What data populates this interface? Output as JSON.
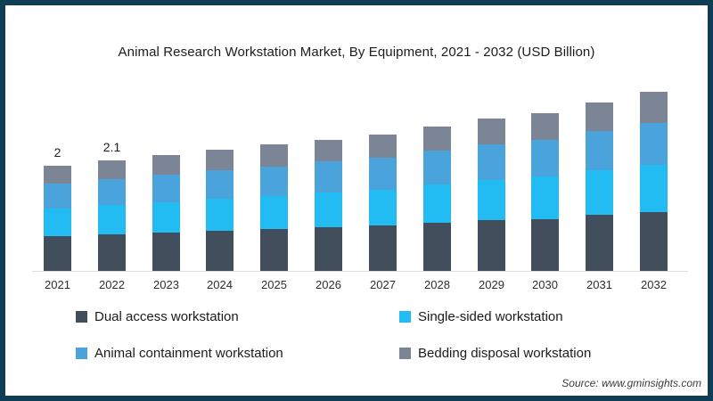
{
  "title": "Animal Research Workstation Market, By Equipment, 2021 - 2032 (USD Billion)",
  "source": "Source: www.gminsights.com",
  "frame_color": "#0f3d56",
  "chart_data": {
    "type": "bar",
    "stacked": true,
    "title": "Animal Research Workstation Market, By Equipment, 2021 - 2032 (USD Billion)",
    "unit": "USD Billion",
    "grid": false,
    "legend_position": "bottom",
    "ylim": [
      0,
      3.6
    ],
    "categories": [
      "2021",
      "2022",
      "2023",
      "2024",
      "2025",
      "2026",
      "2027",
      "2028",
      "2029",
      "2030",
      "2031",
      "2032"
    ],
    "series": [
      {
        "name": "Dual access workstation",
        "color": "#434e5d",
        "values": [
          0.66,
          0.69,
          0.73,
          0.76,
          0.79,
          0.83,
          0.86,
          0.91,
          0.96,
          0.99,
          1.06,
          1.12
        ]
      },
      {
        "name": "Single-sided workstation",
        "color": "#22bcf2",
        "values": [
          0.53,
          0.56,
          0.58,
          0.61,
          0.64,
          0.66,
          0.69,
          0.73,
          0.77,
          0.8,
          0.85,
          0.9
        ]
      },
      {
        "name": "Animal containment workstation",
        "color": "#4aa3da",
        "values": [
          0.47,
          0.49,
          0.52,
          0.54,
          0.56,
          0.59,
          0.61,
          0.65,
          0.68,
          0.71,
          0.75,
          0.8
        ]
      },
      {
        "name": "Bedding disposal workstation",
        "color": "#7b8596",
        "values": [
          0.34,
          0.36,
          0.37,
          0.39,
          0.41,
          0.42,
          0.44,
          0.46,
          0.49,
          0.5,
          0.54,
          0.58
        ]
      }
    ],
    "totals": [
      2.0,
      2.1,
      2.2,
      2.3,
      2.4,
      2.5,
      2.6,
      2.75,
      2.9,
      3.0,
      3.2,
      3.4
    ],
    "bar_labels": [
      "2",
      "2.1",
      "",
      "",
      "",
      "",
      "",
      "",
      "",
      "",
      "",
      ""
    ]
  }
}
